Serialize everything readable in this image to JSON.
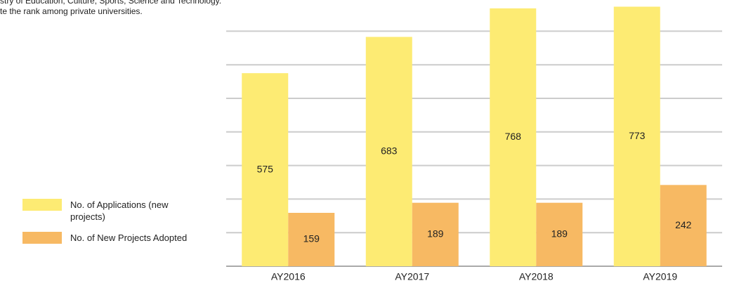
{
  "notes": [
    "stry of Education, Culture, Sports, Science and Technology.",
    "te the rank among private universities."
  ],
  "chart_data": {
    "type": "bar",
    "categories": [
      "AY2016",
      "AY2017",
      "AY2018",
      "AY2019"
    ],
    "series": [
      {
        "name": "No. of Applications (new projects)",
        "color": "#fdeb73",
        "values": [
          575,
          683,
          768,
          773
        ]
      },
      {
        "name": "No. of New Projects Adopted",
        "color": "#f7b963",
        "values": [
          159,
          189,
          189,
          242
        ]
      }
    ],
    "ylim": [
      0,
      800
    ],
    "yticks": [
      0,
      100,
      200,
      300,
      400,
      500,
      600,
      700
    ],
    "grid": true
  }
}
